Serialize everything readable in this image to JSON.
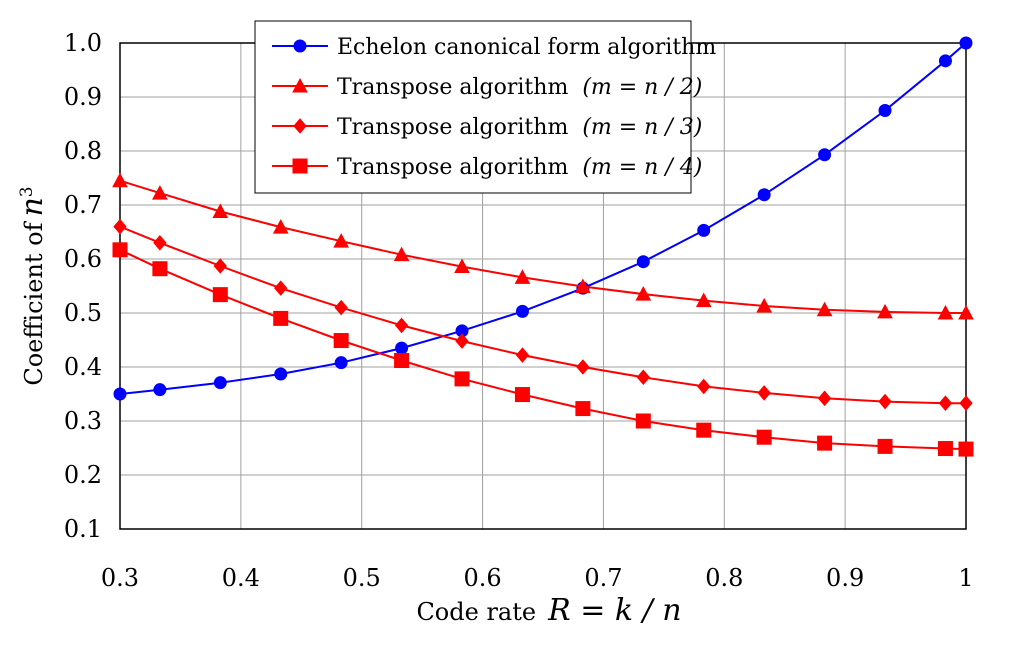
{
  "chart_data": {
    "type": "line",
    "title": "",
    "xlabel": {
      "text": "Code rate",
      "math": "R = k / n"
    },
    "ylabel": {
      "text": "Coefficient of",
      "math": "n",
      "sup": "3"
    },
    "xlim": [
      0.3,
      1.0
    ],
    "ylim": [
      0.1,
      1.0
    ],
    "x_ticks": [
      "0.3",
      "0.4",
      "0.5",
      "0.6",
      "0.7",
      "0.8",
      "0.9",
      "1"
    ],
    "y_ticks": [
      "0.1",
      "0.2",
      "0.3",
      "0.4",
      "0.5",
      "0.6",
      "0.7",
      "0.8",
      "0.9",
      "1.0"
    ],
    "grid": true,
    "legend_position": "top-center",
    "series": [
      {
        "name": "Echelon canonical form algorithm",
        "legend_text": "Echelon canonical form algorithm",
        "legend_math": "",
        "color": "#0000ff",
        "marker": "circle",
        "x": [
          0.3,
          0.333,
          0.383,
          0.433,
          0.483,
          0.533,
          0.583,
          0.633,
          0.683,
          0.733,
          0.783,
          0.833,
          0.883,
          0.933,
          0.983,
          1.0
        ],
        "y": [
          0.35,
          0.358,
          0.371,
          0.387,
          0.408,
          0.435,
          0.467,
          0.503,
          0.546,
          0.595,
          0.653,
          0.719,
          0.793,
          0.875,
          0.967,
          1.0
        ]
      },
      {
        "name": "Transpose algorithm (m = n / 2)",
        "legend_text": "Transpose algorithm",
        "legend_math": "(m = n / 2)",
        "color": "#ff0000",
        "marker": "triangle",
        "x": [
          0.3,
          0.333,
          0.383,
          0.433,
          0.483,
          0.533,
          0.583,
          0.633,
          0.683,
          0.733,
          0.783,
          0.833,
          0.883,
          0.933,
          0.983,
          1.0
        ],
        "y": [
          0.745,
          0.722,
          0.688,
          0.659,
          0.633,
          0.608,
          0.586,
          0.566,
          0.549,
          0.535,
          0.523,
          0.513,
          0.506,
          0.502,
          0.5,
          0.5
        ]
      },
      {
        "name": "Transpose algorithm (m = n / 3)",
        "legend_text": "Transpose algorithm",
        "legend_math": "(m = n / 3)",
        "color": "#ff0000",
        "marker": "diamond",
        "x": [
          0.3,
          0.333,
          0.383,
          0.433,
          0.483,
          0.533,
          0.583,
          0.633,
          0.683,
          0.733,
          0.783,
          0.833,
          0.883,
          0.933,
          0.983,
          1.0
        ],
        "y": [
          0.66,
          0.63,
          0.587,
          0.546,
          0.51,
          0.477,
          0.448,
          0.422,
          0.4,
          0.381,
          0.364,
          0.352,
          0.342,
          0.336,
          0.333,
          0.333
        ]
      },
      {
        "name": "Transpose algorithm (m = n / 4)",
        "legend_text": "Transpose algorithm",
        "legend_math": "(m = n / 4)",
        "color": "#ff0000",
        "marker": "square",
        "x": [
          0.3,
          0.333,
          0.383,
          0.433,
          0.483,
          0.533,
          0.583,
          0.633,
          0.683,
          0.733,
          0.783,
          0.833,
          0.883,
          0.933,
          0.983,
          1.0
        ],
        "y": [
          0.617,
          0.582,
          0.534,
          0.49,
          0.449,
          0.412,
          0.378,
          0.349,
          0.323,
          0.3,
          0.283,
          0.27,
          0.259,
          0.253,
          0.249,
          0.248
        ]
      }
    ]
  }
}
